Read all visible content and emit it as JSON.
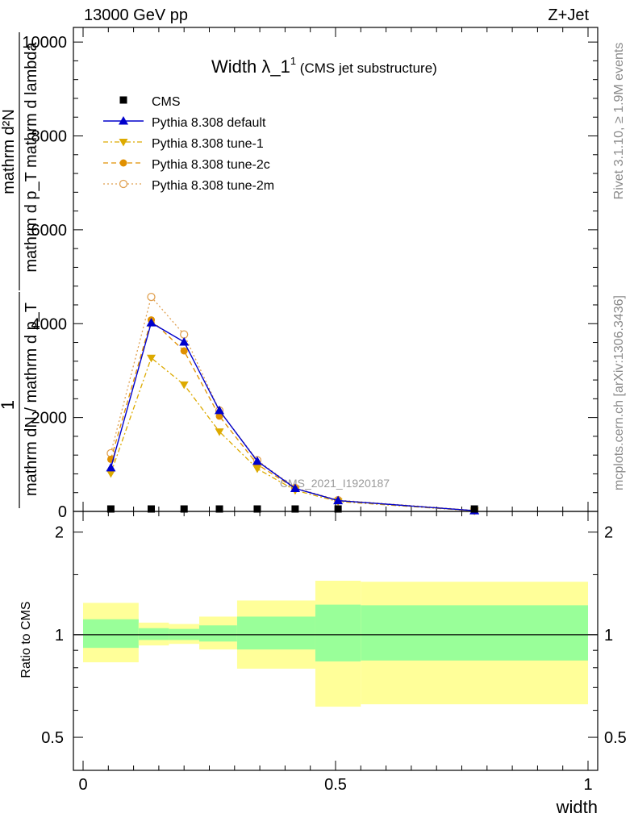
{
  "header": {
    "left": "13000 GeV pp",
    "right": "Z+Jet"
  },
  "side": {
    "top": "Rivet 3.1.10, ≥ 1.9M events",
    "bottom": "mcplots.cern.ch [arXiv:1306.3436]"
  },
  "chart_data": [
    {
      "type": "line",
      "title": "Width λ_1¹ (CMS jet substructure)",
      "title_main": "Width λ_1",
      "title_sup": "1",
      "title_sub": "(CMS jet substructure)",
      "watermark": "CMS_2021_I1920187",
      "ylabel_lines": [
        "mathrm d²N",
        "1",
        "mathrm d p_T mathrm d lambda",
        "mathrm dN / mathrm d p_T"
      ],
      "ylabel_top": "mathrm d²N",
      "ylabel_num": "1",
      "ylabel_den1": "mathrm d p_T mathrm d lambda",
      "ylabel_den2": "mathrm dN / mathrm d p_T",
      "ylabel_full": "1/(mathrm dN / mathrm d p_T) · mathrm d²N / mathrm d p_T mathrm d lambda",
      "xlim": [
        0,
        1
      ],
      "ylim": [
        0,
        10200
      ],
      "yticks": [
        0,
        2000,
        4000,
        6000,
        8000,
        10000
      ],
      "ytick_labels": [
        "0",
        "2000",
        "4000",
        "6000",
        "8000",
        "10000"
      ],
      "legend_position": "top-left",
      "series": [
        {
          "name": "CMS",
          "color": "#000000",
          "x": [
            0.055,
            0.135,
            0.2,
            0.27,
            0.345,
            0.42,
            0.505,
            0.775
          ],
          "y": [
            0,
            0,
            0,
            0,
            0,
            0,
            0,
            0
          ]
        },
        {
          "name": "Pythia 8.308 default",
          "color": "#0000cc",
          "x": [
            0.055,
            0.135,
            0.2,
            0.27,
            0.345,
            0.42,
            0.505,
            0.775
          ],
          "y": [
            930,
            4020,
            3610,
            2150,
            1070,
            490,
            230,
            15
          ]
        },
        {
          "name": "Pythia 8.308 tune-1",
          "color": "#ddaa00",
          "x": [
            0.055,
            0.135,
            0.2,
            0.27,
            0.345,
            0.42,
            0.505,
            0.775
          ],
          "y": [
            810,
            3270,
            2700,
            1700,
            910,
            450,
            210,
            10
          ]
        },
        {
          "name": "Pythia 8.308 tune-2c",
          "color": "#e09000",
          "x": [
            0.055,
            0.135,
            0.2,
            0.27,
            0.345,
            0.42,
            0.505,
            0.775
          ],
          "y": [
            1110,
            4080,
            3420,
            2030,
            1000,
            490,
            230,
            15
          ]
        },
        {
          "name": "Pythia 8.308 tune-2m",
          "color": "#e0a050",
          "x": [
            0.055,
            0.135,
            0.2,
            0.27,
            0.345,
            0.42,
            0.505,
            0.775
          ],
          "y": [
            1240,
            4570,
            3770,
            2150,
            1090,
            500,
            240,
            20
          ]
        }
      ]
    },
    {
      "type": "area",
      "ylabel": "Ratio to CMS",
      "xlabel": "width",
      "xlim": [
        0,
        1
      ],
      "ylim": [
        0.4,
        2.3
      ],
      "log_y": true,
      "yticks": [
        0.5,
        1,
        2
      ],
      "ytick_labels": [
        "0.5",
        "1",
        "2"
      ],
      "xticks": [
        0,
        0.5,
        1
      ],
      "xtick_labels": [
        "0",
        "0.5",
        "1"
      ],
      "reference_line": 1,
      "bands": [
        {
          "x0": 0.0,
          "x1": 0.11,
          "stat": [
            0.915,
            1.11
          ],
          "total": [
            0.83,
            1.24
          ]
        },
        {
          "x0": 0.11,
          "x1": 0.17,
          "stat": [
            0.965,
            1.045
          ],
          "total": [
            0.93,
            1.085
          ]
        },
        {
          "x0": 0.17,
          "x1": 0.23,
          "stat": [
            0.965,
            1.04
          ],
          "total": [
            0.94,
            1.075
          ]
        },
        {
          "x0": 0.23,
          "x1": 0.305,
          "stat": [
            0.955,
            1.065
          ],
          "total": [
            0.905,
            1.13
          ]
        },
        {
          "x0": 0.305,
          "x1": 0.46,
          "stat": [
            0.905,
            1.13
          ],
          "total": [
            0.795,
            1.26
          ]
        },
        {
          "x0": 0.46,
          "x1": 0.55,
          "stat": [
            0.835,
            1.225
          ],
          "total": [
            0.615,
            1.44
          ]
        },
        {
          "x0": 0.55,
          "x1": 1.0,
          "stat": [
            0.84,
            1.22
          ],
          "total": [
            0.625,
            1.43
          ]
        }
      ],
      "colors": {
        "stat": "#99ff99",
        "total": "#ffff99"
      }
    }
  ]
}
